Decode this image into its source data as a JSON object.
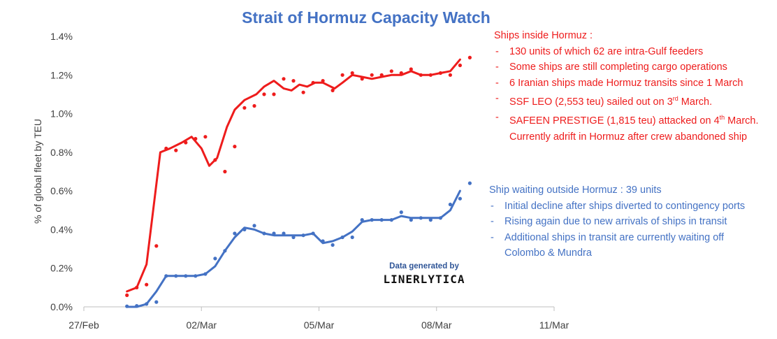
{
  "chart_data": {
    "type": "line",
    "title": "Strait of Hormuz Capacity Watch",
    "ylabel": "% of global fleet by TEU",
    "xlabel": "",
    "ylim": [
      0,
      0.014
    ],
    "xlim": [
      0,
      12
    ],
    "y_ticks": [
      0,
      0.002,
      0.004,
      0.006,
      0.008,
      0.01,
      0.012,
      0.014
    ],
    "y_tick_labels": [
      "0.0%",
      "0.2%",
      "0.4%",
      "0.6%",
      "0.8%",
      "1.0%",
      "1.2%",
      "1.4%"
    ],
    "x_ticks": [
      0,
      3,
      6,
      9,
      12
    ],
    "x_tick_labels": [
      "27/Feb",
      "02/Mar",
      "05/Mar",
      "08/Mar",
      "11/Mar"
    ],
    "grid": false,
    "series": [
      {
        "color": "#ee1c1c",
        "points_x": [
          1.1,
          1.35,
          1.6,
          1.85,
          2.1,
          2.35,
          2.6,
          2.85,
          3.1,
          3.35,
          3.6,
          3.85,
          4.1,
          4.35,
          4.6,
          4.85,
          5.1,
          5.35,
          5.6,
          5.85,
          6.1,
          6.35,
          6.6,
          6.85,
          7.1,
          7.35,
          7.6,
          7.85,
          8.1,
          8.35,
          8.6,
          8.85,
          9.1,
          9.35,
          9.6,
          9.85
        ],
        "points_y": [
          0.0006,
          0.001,
          0.00115,
          0.00315,
          0.0082,
          0.0081,
          0.0085,
          0.0087,
          0.0088,
          0.0076,
          0.007,
          0.0083,
          0.0103,
          0.0104,
          0.011,
          0.011,
          0.0118,
          0.0117,
          0.0111,
          0.0116,
          0.0117,
          0.0112,
          0.012,
          0.0121,
          0.0118,
          0.012,
          0.012,
          0.0122,
          0.0121,
          0.0123,
          0.012,
          0.012,
          0.0121,
          0.012,
          0.0125,
          0.0129
        ],
        "trend_x": [
          1.1,
          1.35,
          1.6,
          1.8,
          1.95,
          2.2,
          2.5,
          2.75,
          3.0,
          3.2,
          3.4,
          3.65,
          3.85,
          4.1,
          4.4,
          4.6,
          4.85,
          5.1,
          5.3,
          5.5,
          5.7,
          5.9,
          6.1,
          6.4,
          6.6,
          6.85,
          7.1,
          7.35,
          7.6,
          7.85,
          8.1,
          8.35,
          8.6,
          8.85,
          9.1,
          9.35,
          9.6
        ],
        "trend_y": [
          0.0008,
          0.001,
          0.0022,
          0.0055,
          0.008,
          0.0082,
          0.0085,
          0.0088,
          0.0082,
          0.0073,
          0.0077,
          0.0093,
          0.0102,
          0.0107,
          0.011,
          0.0114,
          0.0117,
          0.0113,
          0.0112,
          0.0115,
          0.0114,
          0.0116,
          0.0116,
          0.0113,
          0.0116,
          0.012,
          0.0119,
          0.0118,
          0.0119,
          0.012,
          0.012,
          0.0122,
          0.012,
          0.012,
          0.0121,
          0.0122,
          0.0128
        ]
      },
      {
        "color": "#4472c4",
        "points_x": [
          1.1,
          1.35,
          1.6,
          1.85,
          2.1,
          2.35,
          2.6,
          2.85,
          3.1,
          3.35,
          3.6,
          3.85,
          4.1,
          4.35,
          4.6,
          4.85,
          5.1,
          5.35,
          5.6,
          5.85,
          6.1,
          6.35,
          6.6,
          6.85,
          7.1,
          7.35,
          7.6,
          7.85,
          8.1,
          8.35,
          8.6,
          8.85,
          9.1,
          9.35,
          9.6,
          9.85
        ],
        "points_y": [
          3e-05,
          5e-05,
          0.00015,
          0.00025,
          0.0016,
          0.0016,
          0.0016,
          0.0016,
          0.0017,
          0.0025,
          0.0029,
          0.0038,
          0.004,
          0.0042,
          0.0038,
          0.0038,
          0.0038,
          0.0036,
          0.0037,
          0.0038,
          0.0034,
          0.0032,
          0.0036,
          0.0036,
          0.0045,
          0.0045,
          0.0045,
          0.0045,
          0.0049,
          0.0045,
          0.0046,
          0.0045,
          0.0046,
          0.0053,
          0.0056,
          0.0064
        ],
        "trend_x": [
          1.1,
          1.35,
          1.6,
          1.85,
          2.1,
          2.35,
          2.6,
          2.85,
          3.1,
          3.35,
          3.6,
          3.85,
          4.1,
          4.35,
          4.6,
          4.85,
          5.1,
          5.35,
          5.6,
          5.85,
          6.1,
          6.35,
          6.6,
          6.85,
          7.1,
          7.35,
          7.6,
          7.85,
          8.1,
          8.35,
          8.6,
          8.85,
          9.1,
          9.35,
          9.6
        ],
        "trend_y": [
          0.0,
          0.0,
          0.00015,
          0.0008,
          0.0016,
          0.0016,
          0.0016,
          0.0016,
          0.0017,
          0.0021,
          0.0029,
          0.0036,
          0.0041,
          0.004,
          0.0038,
          0.0037,
          0.0037,
          0.0037,
          0.0037,
          0.0038,
          0.0033,
          0.0034,
          0.0036,
          0.0039,
          0.0044,
          0.0045,
          0.0045,
          0.0045,
          0.0047,
          0.0046,
          0.0046,
          0.0046,
          0.0046,
          0.005,
          0.006
        ]
      }
    ]
  },
  "notes": {
    "red": {
      "heading": "Ships inside Hormuz :",
      "items": [
        "130 units of which 62 are intra-Gulf feeders",
        "Some ships are still completing cargo operations",
        "6 Iranian ships made Hormuz transits since 1 March",
        "SSF LEO (2,553 teu) sailed out on 3rd March.",
        "SAFEEN PRESTIGE (1,815 teu) attacked on 4th March. Currently adrift in Hormuz after crew abandoned ship"
      ]
    },
    "blue": {
      "heading": "Ship waiting outside Hormuz : 39 units",
      "items": [
        "Initial decline after ships diverted to contingency ports",
        "Rising again due to new arrivals of ships in transit",
        "Additional ships in transit are currently waiting off Colombo & Mundra"
      ]
    }
  },
  "credit": {
    "line": "Data generated by",
    "brand": "LINERLYTICA"
  }
}
